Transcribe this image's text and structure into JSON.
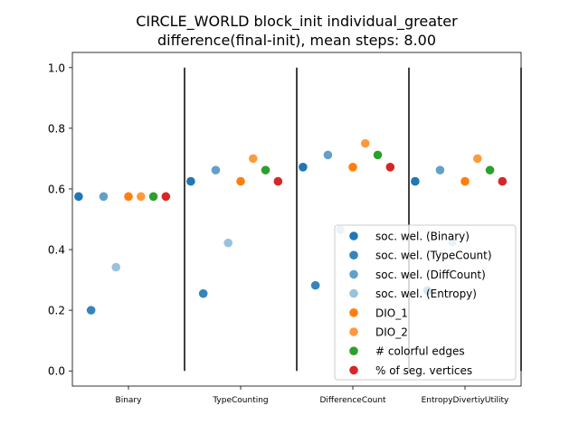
{
  "chart_data": {
    "type": "scatter",
    "title": [
      "CIRCLE_WORLD block_init individual_greater",
      "difference(final-init), mean steps: 8.00"
    ],
    "xlabel": "",
    "ylabel": "",
    "ylim": [
      0,
      1
    ],
    "y_ticks": [
      "0.0",
      "0.2",
      "0.4",
      "0.6",
      "0.8",
      "1.0"
    ],
    "y_tick_values": [
      0,
      0.2,
      0.4,
      0.6,
      0.8,
      1.0
    ],
    "categories": [
      "Binary",
      "TypeCounting",
      "DifferenceCount",
      "EntropyDivertiyUtility"
    ],
    "x_range": [
      -0.5,
      35.5
    ],
    "x_tick_positions": [
      4,
      13,
      22,
      31
    ],
    "separators": [
      8.5,
      17.5,
      26.5,
      35.5
    ],
    "grid": false,
    "legend_position": "lower right",
    "series": [
      {
        "name": "soc. wel. (Binary)",
        "color": "#1f77b4",
        "alpha": 1.0,
        "points": [
          [
            0,
            0.575
          ],
          [
            9,
            0.625
          ],
          [
            18,
            0.672
          ],
          [
            27,
            0.625
          ]
        ]
      },
      {
        "name": "soc. wel. (TypeCount)",
        "color": "#1f77b4",
        "alpha": 0.9,
        "points": [
          [
            1,
            0.2
          ],
          [
            10,
            0.255
          ],
          [
            19,
            0.282
          ],
          [
            28,
            0.265
          ]
        ]
      },
      {
        "name": "soc. wel. (DiffCount)",
        "color": "#1f77b4",
        "alpha": 0.7,
        "points": [
          [
            2,
            0.575
          ],
          [
            11,
            0.662
          ],
          [
            20,
            0.712
          ],
          [
            29,
            0.662
          ]
        ]
      },
      {
        "name": "soc. wel. (Entropy)",
        "color": "#1f77b4",
        "alpha": 0.45,
        "points": [
          [
            3,
            0.342
          ],
          [
            12,
            0.422
          ],
          [
            21,
            0.465
          ],
          [
            30,
            0.425
          ]
        ]
      },
      {
        "name": "DIO_1",
        "color": "#ff7f0e",
        "alpha": 1.0,
        "points": [
          [
            4,
            0.575
          ],
          [
            13,
            0.625
          ],
          [
            22,
            0.672
          ],
          [
            31,
            0.625
          ]
        ]
      },
      {
        "name": "DIO_2",
        "color": "#ff7f0e",
        "alpha": 0.8,
        "points": [
          [
            5,
            0.575
          ],
          [
            14,
            0.7
          ],
          [
            23,
            0.75
          ],
          [
            32,
            0.7
          ]
        ]
      },
      {
        "name": "# colorful edges",
        "color": "#2ca02c",
        "alpha": 1.0,
        "points": [
          [
            6,
            0.575
          ],
          [
            15,
            0.662
          ],
          [
            24,
            0.712
          ],
          [
            33,
            0.662
          ]
        ]
      },
      {
        "name": "% of seg. vertices",
        "color": "#d62728",
        "alpha": 1.0,
        "points": [
          [
            7,
            0.575
          ],
          [
            16,
            0.625
          ],
          [
            25,
            0.672
          ],
          [
            34,
            0.625
          ]
        ]
      }
    ]
  }
}
